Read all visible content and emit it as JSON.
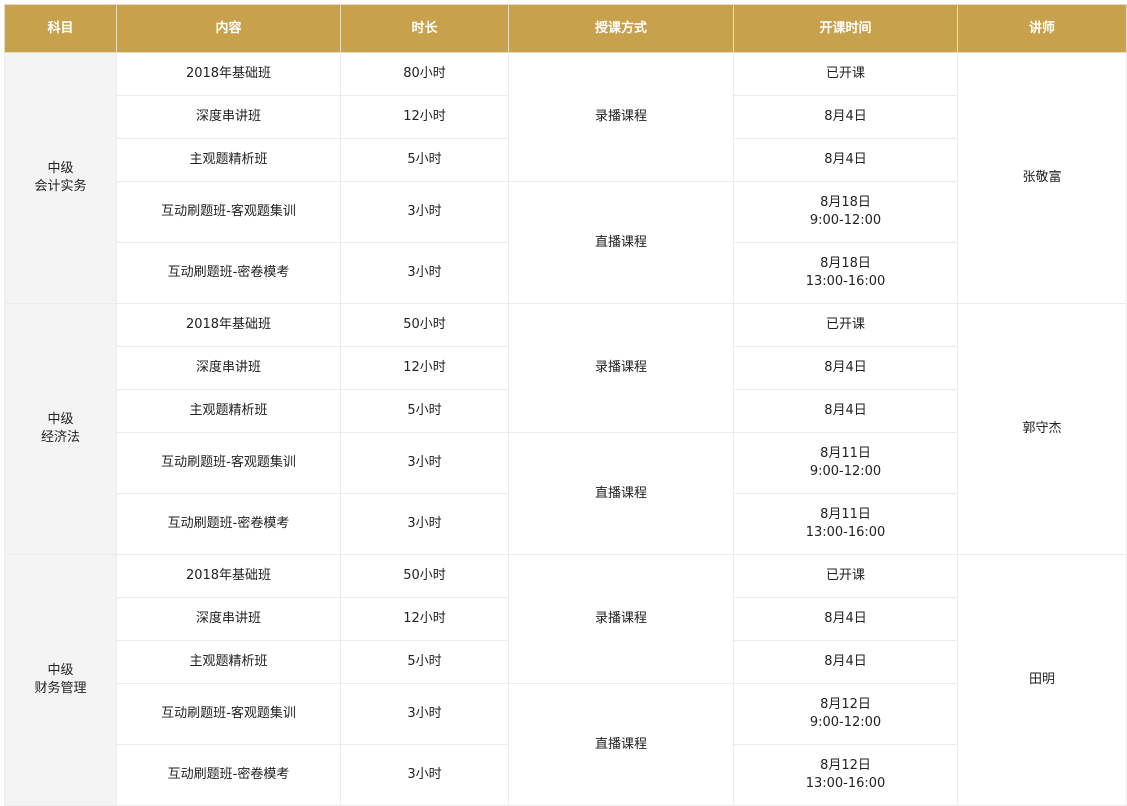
{
  "headers": [
    "科目",
    "内容",
    "时长",
    "授课方式",
    "开课时间",
    "讲师"
  ],
  "groups": [
    {
      "subject": [
        "中级",
        "会计实务"
      ],
      "teacher": "张敬富",
      "methods": [
        "录播课程",
        "直播课程"
      ],
      "rows": [
        {
          "content": "2018年基础班",
          "duration": "80小时",
          "time": [
            "已开课"
          ]
        },
        {
          "content": "深度串讲班",
          "duration": "12小时",
          "time": [
            "8月4日"
          ]
        },
        {
          "content": "主观题精析班",
          "duration": "5小时",
          "time": [
            "8月4日"
          ]
        },
        {
          "content": "互动刷题班-客观题集训",
          "duration": "3小时",
          "time": [
            "8月18日",
            "9:00-12:00"
          ]
        },
        {
          "content": "互动刷题班-密卷模考",
          "duration": "3小时",
          "time": [
            "8月18日",
            "13:00-16:00"
          ]
        }
      ]
    },
    {
      "subject": [
        "中级",
        "经济法"
      ],
      "teacher": "郭守杰",
      "methods": [
        "录播课程",
        "直播课程"
      ],
      "rows": [
        {
          "content": "2018年基础班",
          "duration": "50小时",
          "time": [
            "已开课"
          ]
        },
        {
          "content": "深度串讲班",
          "duration": "12小时",
          "time": [
            "8月4日"
          ]
        },
        {
          "content": "主观题精析班",
          "duration": "5小时",
          "time": [
            "8月4日"
          ]
        },
        {
          "content": "互动刷题班-客观题集训",
          "duration": "3小时",
          "time": [
            "8月11日",
            "9:00-12:00"
          ]
        },
        {
          "content": "互动刷题班-密卷模考",
          "duration": "3小时",
          "time": [
            "8月11日",
            "13:00-16:00"
          ]
        }
      ]
    },
    {
      "subject": [
        "中级",
        "财务管理"
      ],
      "teacher": "田明",
      "methods": [
        "录播课程",
        "直播课程"
      ],
      "rows": [
        {
          "content": "2018年基础班",
          "duration": "50小时",
          "time": [
            "已开课"
          ]
        },
        {
          "content": "深度串讲班",
          "duration": "12小时",
          "time": [
            "8月4日"
          ]
        },
        {
          "content": "主观题精析班",
          "duration": "5小时",
          "time": [
            "8月4日"
          ]
        },
        {
          "content": "互动刷题班-客观题集训",
          "duration": "3小时",
          "time": [
            "8月12日",
            "9:00-12:00"
          ]
        },
        {
          "content": "互动刷题班-密卷模考",
          "duration": "3小时",
          "time": [
            "8月12日",
            "13:00-16:00"
          ]
        }
      ]
    }
  ],
  "colors": {
    "header": "#c8a14c",
    "subject_bg": "#f4f4f4",
    "border": "#ececec"
  }
}
